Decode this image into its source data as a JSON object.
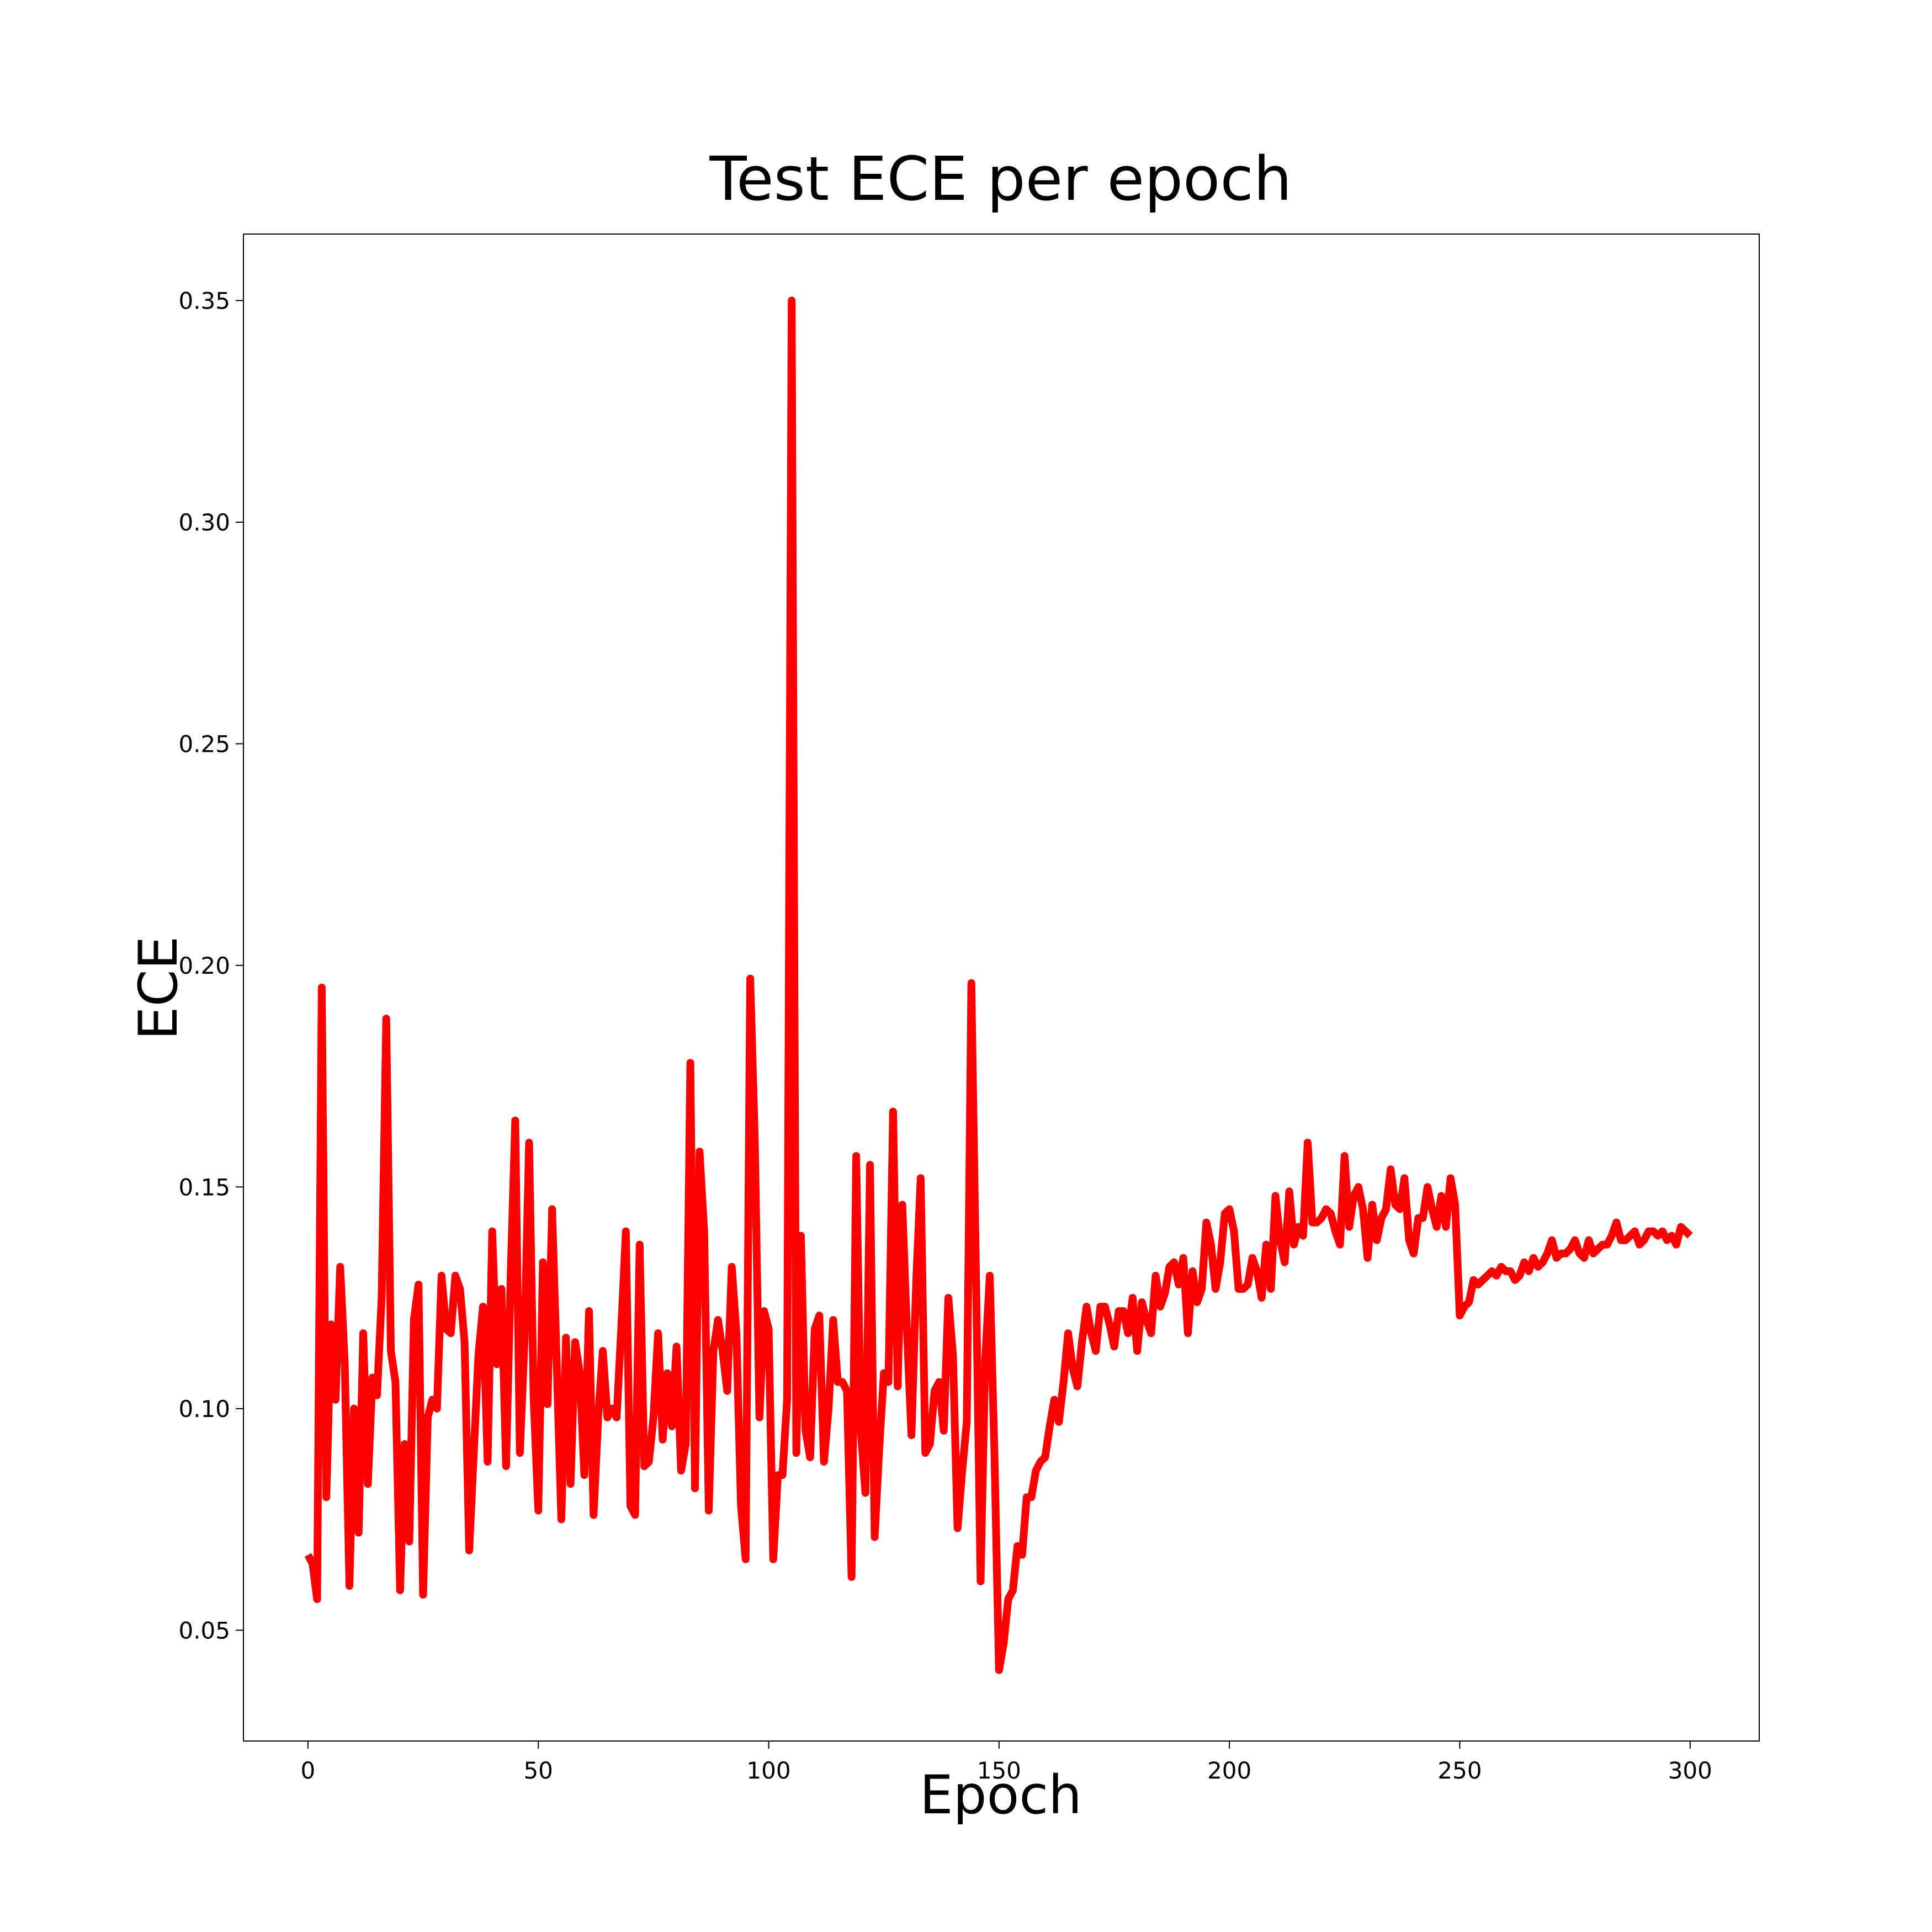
{
  "chart_data": {
    "type": "line",
    "title": "Test ECE per epoch",
    "xlabel": "Epoch",
    "ylabel": "ECE",
    "xlim": [
      -14,
      315
    ],
    "ylim": [
      0.025,
      0.365
    ],
    "xticks": [
      0,
      50,
      100,
      150,
      200,
      250,
      300
    ],
    "xtick_labels": [
      "0",
      "50",
      "100",
      "150",
      "200",
      "250",
      "300"
    ],
    "yticks": [
      0.05,
      0.1,
      0.15,
      0.2,
      0.25,
      0.3,
      0.35
    ],
    "ytick_labels": [
      "0.05",
      "0.10",
      "0.15",
      "0.20",
      "0.25",
      "0.30",
      "0.35"
    ],
    "grid": false,
    "legend": "none",
    "series": [
      {
        "color": "#ff0000",
        "x": [
          0,
          1,
          2,
          3,
          4,
          5,
          6,
          7,
          8,
          9,
          10,
          11,
          12,
          13,
          14,
          15,
          16,
          17,
          18,
          19,
          20,
          21,
          22,
          23,
          24,
          25,
          26,
          27,
          28,
          29,
          30,
          31,
          32,
          33,
          34,
          35,
          36,
          37,
          38,
          39,
          40,
          41,
          42,
          43,
          44,
          45,
          46,
          47,
          48,
          49,
          50,
          51,
          52,
          53,
          54,
          55,
          56,
          57,
          58,
          59,
          60,
          61,
          62,
          63,
          64,
          65,
          66,
          67,
          68,
          69,
          70,
          71,
          72,
          73,
          74,
          75,
          76,
          77,
          78,
          79,
          80,
          81,
          82,
          83,
          84,
          85,
          86,
          87,
          88,
          89,
          90,
          91,
          92,
          93,
          94,
          95,
          96,
          97,
          98,
          99,
          100,
          101,
          102,
          103,
          104,
          105,
          106,
          107,
          108,
          109,
          110,
          111,
          112,
          113,
          114,
          115,
          116,
          117,
          118,
          119,
          120,
          121,
          122,
          123,
          124,
          125,
          126,
          127,
          128,
          129,
          130,
          131,
          132,
          133,
          134,
          135,
          136,
          137,
          138,
          139,
          140,
          141,
          142,
          143,
          144,
          145,
          146,
          147,
          148,
          149,
          150,
          151,
          152,
          153,
          154,
          155,
          156,
          157,
          158,
          159,
          160,
          161,
          162,
          163,
          164,
          165,
          166,
          167,
          168,
          169,
          170,
          171,
          172,
          173,
          174,
          175,
          176,
          177,
          178,
          179,
          180,
          181,
          182,
          183,
          184,
          185,
          186,
          187,
          188,
          189,
          190,
          191,
          192,
          193,
          194,
          195,
          196,
          197,
          198,
          199,
          200,
          201,
          202,
          203,
          204,
          205,
          206,
          207,
          208,
          209,
          210,
          211,
          212,
          213,
          214,
          215,
          216,
          217,
          218,
          219,
          220,
          221,
          222,
          223,
          224,
          225,
          226,
          227,
          228,
          229,
          230,
          231,
          232,
          233,
          234,
          235,
          236,
          237,
          238,
          239,
          240,
          241,
          242,
          243,
          244,
          245,
          246,
          247,
          248,
          249,
          250,
          251,
          252,
          253,
          254,
          255,
          256,
          257,
          258,
          259,
          260,
          261,
          262,
          263,
          264,
          265,
          266,
          267,
          268,
          269,
          270,
          271,
          272,
          273,
          274,
          275,
          276,
          277,
          278,
          279,
          280,
          281,
          282,
          283,
          284,
          285,
          286,
          287,
          288,
          289,
          290,
          291,
          292,
          293,
          294,
          295,
          296,
          297,
          298,
          299,
          300
        ],
        "y": [
          0.067,
          0.065,
          0.057,
          0.195,
          0.08,
          0.119,
          0.102,
          0.132,
          0.11,
          0.06,
          0.1,
          0.072,
          0.117,
          0.083,
          0.107,
          0.103,
          0.125,
          0.188,
          0.113,
          0.106,
          0.059,
          0.092,
          0.07,
          0.12,
          0.128,
          0.058,
          0.098,
          0.102,
          0.1,
          0.13,
          0.118,
          0.117,
          0.13,
          0.127,
          0.115,
          0.068,
          0.09,
          0.112,
          0.123,
          0.088,
          0.14,
          0.11,
          0.127,
          0.087,
          0.13,
          0.165,
          0.09,
          0.115,
          0.16,
          0.102,
          0.077,
          0.133,
          0.101,
          0.145,
          0.11,
          0.075,
          0.116,
          0.083,
          0.115,
          0.108,
          0.085,
          0.122,
          0.076,
          0.098,
          0.113,
          0.098,
          0.1,
          0.098,
          0.118,
          0.14,
          0.078,
          0.076,
          0.137,
          0.087,
          0.088,
          0.098,
          0.117,
          0.093,
          0.108,
          0.096,
          0.114,
          0.086,
          0.092,
          0.178,
          0.082,
          0.158,
          0.14,
          0.077,
          0.113,
          0.12,
          0.113,
          0.104,
          0.132,
          0.117,
          0.078,
          0.066,
          0.197,
          0.16,
          0.098,
          0.122,
          0.118,
          0.066,
          0.085,
          0.085,
          0.102,
          0.35,
          0.09,
          0.139,
          0.095,
          0.089,
          0.118,
          0.121,
          0.088,
          0.1,
          0.12,
          0.106,
          0.106,
          0.104,
          0.062,
          0.157,
          0.095,
          0.081,
          0.155,
          0.071,
          0.091,
          0.108,
          0.106,
          0.167,
          0.105,
          0.146,
          0.118,
          0.094,
          0.128,
          0.152,
          0.09,
          0.092,
          0.104,
          0.106,
          0.095,
          0.125,
          0.112,
          0.073,
          0.086,
          0.097,
          0.196,
          0.13,
          0.061,
          0.111,
          0.13,
          0.09,
          0.041,
          0.047,
          0.057,
          0.059,
          0.069,
          0.067,
          0.08,
          0.08,
          0.086,
          0.088,
          0.089,
          0.096,
          0.102,
          0.097,
          0.106,
          0.117,
          0.109,
          0.105,
          0.115,
          0.123,
          0.117,
          0.113,
          0.123,
          0.123,
          0.119,
          0.114,
          0.122,
          0.122,
          0.117,
          0.125,
          0.113,
          0.124,
          0.12,
          0.117,
          0.13,
          0.123,
          0.126,
          0.132,
          0.133,
          0.128,
          0.134,
          0.117,
          0.131,
          0.124,
          0.127,
          0.142,
          0.137,
          0.127,
          0.133,
          0.144,
          0.145,
          0.14,
          0.127,
          0.127,
          0.128,
          0.134,
          0.131,
          0.125,
          0.137,
          0.127,
          0.148,
          0.138,
          0.133,
          0.149,
          0.137,
          0.141,
          0.139,
          0.16,
          0.142,
          0.142,
          0.143,
          0.145,
          0.144,
          0.14,
          0.137,
          0.157,
          0.141,
          0.148,
          0.15,
          0.145,
          0.134,
          0.146,
          0.138,
          0.143,
          0.145,
          0.154,
          0.146,
          0.145,
          0.152,
          0.138,
          0.135,
          0.143,
          0.143,
          0.15,
          0.145,
          0.141,
          0.148,
          0.141,
          0.152,
          0.146,
          0.121,
          0.123,
          0.124,
          0.129,
          0.128,
          0.129,
          0.13,
          0.131,
          0.13,
          0.132,
          0.131,
          0.131,
          0.129,
          0.13,
          0.133,
          0.131,
          0.134,
          0.132,
          0.133,
          0.135,
          0.138,
          0.134,
          0.135,
          0.135,
          0.136,
          0.138,
          0.135,
          0.134,
          0.138,
          0.135,
          0.136,
          0.137,
          0.137,
          0.139,
          0.142,
          0.138,
          0.138,
          0.139,
          0.14,
          0.137,
          0.138,
          0.14,
          0.14,
          0.139,
          0.14,
          0.138,
          0.139,
          0.137,
          0.141,
          0.14,
          0.139
        ]
      }
    ]
  }
}
